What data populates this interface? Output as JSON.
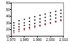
{
  "chart_data": {
    "type": "scatter",
    "xlim": [
      1970,
      2010
    ],
    "xticks": [
      1970,
      1980,
      1990,
      2000,
      2010
    ],
    "ylim": [
      10,
      60
    ],
    "yticks": [
      10,
      20,
      30,
      40,
      50,
      60
    ],
    "grid": false,
    "series": [
      {
        "color": "#000000",
        "marker": "circle",
        "x": [
          1972,
          1972,
          1972,
          1972,
          1976,
          1976,
          1976,
          1976,
          1980,
          1980,
          1980,
          1980,
          1984,
          1984,
          1984,
          1984,
          1988,
          1988,
          1988,
          1988,
          1992,
          1992,
          1992,
          1992,
          1996,
          1996,
          1996,
          1996,
          2000,
          2000,
          2000,
          2000,
          2004,
          2004,
          2004,
          2004,
          2008,
          2008,
          2008,
          2008
        ],
        "values": [
          18,
          22,
          26,
          30,
          20,
          24,
          28,
          33,
          21,
          26,
          30,
          35,
          23,
          27,
          32,
          37,
          25,
          29,
          34,
          39,
          26,
          31,
          36,
          41,
          28,
          33,
          38,
          43,
          30,
          35,
          40,
          45,
          32,
          37,
          42,
          47,
          34,
          39,
          44,
          49
        ]
      },
      {
        "color": "#d62728",
        "marker": "circle",
        "x": [
          1972,
          1976,
          1980,
          1984,
          1988,
          1992,
          1996,
          2000,
          2004,
          2008
        ],
        "values": [
          15,
          17,
          19,
          21,
          23,
          25,
          27,
          29,
          31,
          33
        ]
      }
    ]
  }
}
